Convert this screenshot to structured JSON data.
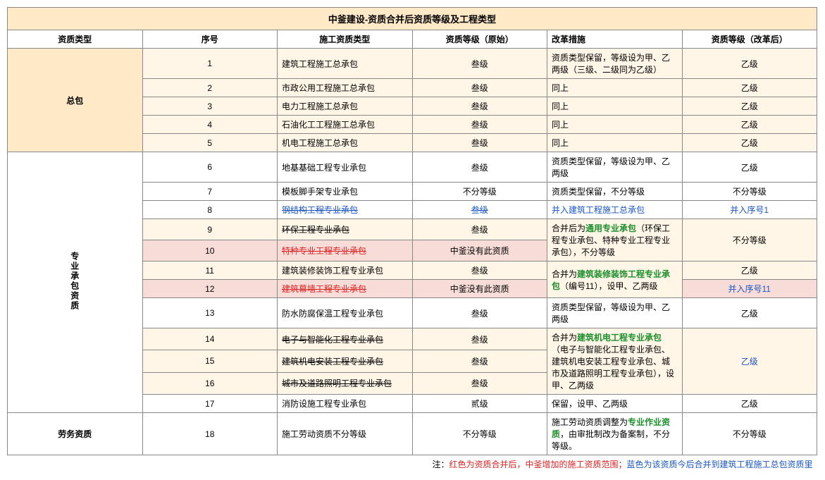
{
  "title": "中釜建设-资质合并后资质等级及工程类型",
  "headers": {
    "category": "资质类型",
    "seq": "序号",
    "type": "施工资质类型",
    "orig": "资质等级（原始）",
    "reform": "改革措施",
    "after": "资质等级（改革后）"
  },
  "categories": {
    "zongbao": "总包",
    "zhuanye": "专业承包资质",
    "laowu": "劳务资质"
  },
  "rows": {
    "r1": {
      "seq": "1",
      "type": "建筑工程施工总承包",
      "orig": "叁级",
      "reform": "资质类型保留，等级设为甲、乙两级（三级、二级同为乙级）",
      "after": "乙级"
    },
    "r2": {
      "seq": "2",
      "type": "市政公用工程施工总承包",
      "orig": "叁级",
      "reform": "同上",
      "after": "乙级"
    },
    "r3": {
      "seq": "3",
      "type": "电力工程施工总承包",
      "orig": "叁级",
      "reform": "同上",
      "after": "乙级"
    },
    "r4": {
      "seq": "4",
      "type": "石油化工工程施工总承包",
      "orig": "叁级",
      "reform": "同上",
      "after": "乙级"
    },
    "r5": {
      "seq": "5",
      "type": "机电工程施工总承包",
      "orig": "叁级",
      "reform": "同上",
      "after": "乙级"
    },
    "r6": {
      "seq": "6",
      "type": "地基基础工程专业承包",
      "orig": "叁级",
      "reform": "资质类型保留，等级设为甲、乙两级",
      "after": "乙级"
    },
    "r7": {
      "seq": "7",
      "type": "模板脚手架专业承包",
      "orig": "不分等级",
      "reform": "资质类型保留，不分等级",
      "after": "不分等级"
    },
    "r8": {
      "seq": "8",
      "type": "钢结构工程专业承包",
      "orig": "叁级",
      "reform": "并入建筑工程施工总承包",
      "after": "并入序号1"
    },
    "r9": {
      "seq": "9",
      "type": "环保工程专业承包",
      "orig": "叁级",
      "after": "不分等级"
    },
    "r10": {
      "seq": "10",
      "type": "特种专业工程专业承包",
      "orig": "中釜没有此资质"
    },
    "r9_10_reform": {
      "pre": "合并后为",
      "bold": "通用专业承包",
      "post": "（环保工程专业承包、特种专业工程专业承包），不分等级"
    },
    "r11": {
      "seq": "11",
      "type": "建筑装修装饰工程专业承包",
      "orig": "叁级",
      "after": "乙级"
    },
    "r12": {
      "seq": "12",
      "type": "建筑幕墙工程专业承包",
      "orig": "中釜没有此资质",
      "after": "并入序号11"
    },
    "r11_12_reform": {
      "pre": "合并为",
      "bold": "建筑装修装饰工程专业承包",
      "post": "（编号11），设甲、乙两级"
    },
    "r13": {
      "seq": "13",
      "type": "防水防腐保温工程专业承包",
      "orig": "叁级",
      "reform": "资质类型保留，等级设为甲、乙两级",
      "after": "乙级"
    },
    "r14": {
      "seq": "14",
      "type": "电子与智能化工程专业承包",
      "orig": "叁级",
      "after": "乙级"
    },
    "r15": {
      "seq": "15",
      "type": "建筑机电安装工程专业承包",
      "orig": "叁级"
    },
    "r16": {
      "seq": "16",
      "type": "城市及道路照明工程专业承包",
      "orig": "叁级"
    },
    "r14_16_reform": {
      "pre": "合并为",
      "bold": "建筑机电工程专业承包",
      "post": "（电子与智能化工程专业承包、建筑机电安装工程专业承包、城市及道路照明工程专业承包），设甲、乙两级"
    },
    "r17": {
      "seq": "17",
      "type": "消防设施工程专业承包",
      "orig": "贰级",
      "reform": "保留，设甲、乙两级",
      "after": "乙级"
    },
    "r18": {
      "seq": "18",
      "type": "施工劳动资质不分等级",
      "orig": "不分等级",
      "after": "不分等级"
    },
    "r18_reform": {
      "pre": "施工劳动资质调整为",
      "bold": "专业作业资质",
      "post": "，由审批制改为备案制，不分等级。"
    }
  },
  "note": {
    "pre": "注：",
    "red": "红色为资质合并后，中釜增加的施工资质范围；",
    "blue": "蓝色为该资质今后合并到建筑工程施工总包资质里"
  },
  "colors": {
    "bg_header": "#ffe9c7",
    "bg_lt": "#fff6e8",
    "bg_pink": "#f7dcd8",
    "red": "#d22",
    "blue": "#1a56c4",
    "green": "#1a8f2a",
    "border": "#888"
  }
}
